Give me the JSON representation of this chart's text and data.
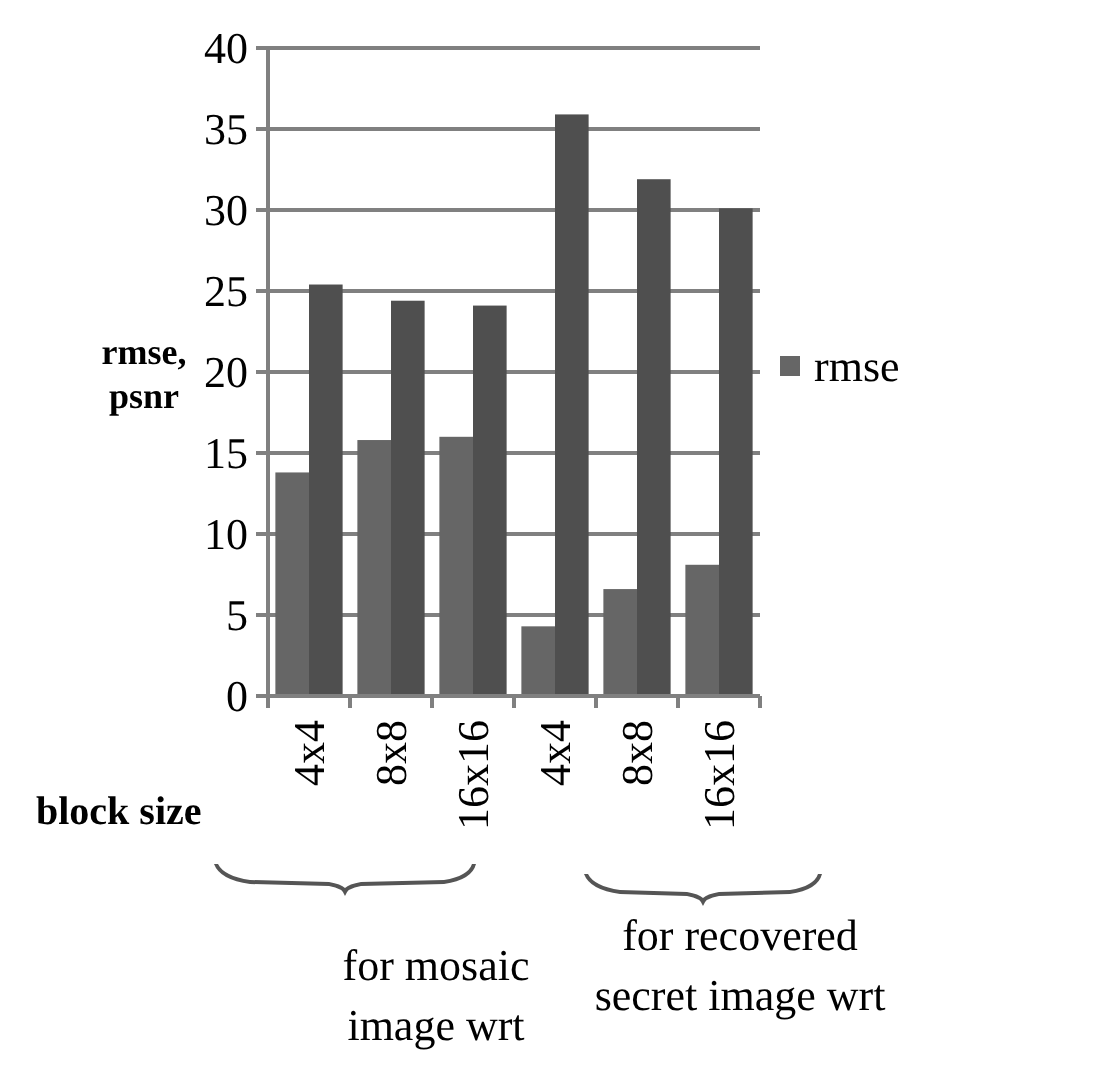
{
  "chart_data": {
    "type": "bar",
    "ylabel": "rmse,\npsnr",
    "xlabel": "block size",
    "categories": [
      "4x4",
      "8x8",
      "16x16",
      "4x4",
      "8x8",
      "16x16"
    ],
    "series": [
      {
        "name": "rmse",
        "color": "#666666",
        "values": [
          13.8,
          15.8,
          16.0,
          4.3,
          6.6,
          8.1
        ]
      },
      {
        "color": "#4f4f4f",
        "values": [
          25.4,
          24.4,
          24.1,
          35.9,
          31.9,
          30.1
        ]
      }
    ],
    "ylim": [
      0,
      40
    ],
    "yticks": [
      0,
      5,
      10,
      15,
      20,
      25,
      30,
      35,
      40
    ],
    "grid": "y",
    "legend": "right",
    "annotations": [
      "for mosaic\nimage wrt",
      "for recovered\nsecret image wrt"
    ]
  }
}
